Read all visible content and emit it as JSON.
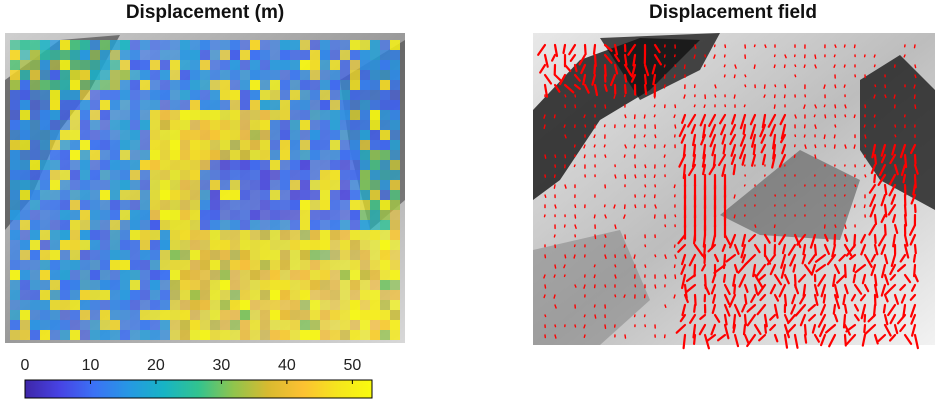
{
  "panels": {
    "left": {
      "title": "Displacement (m)"
    },
    "right": {
      "title": "Displacement field"
    }
  },
  "colorbar": {
    "ticks": [
      "0",
      "10",
      "20",
      "30",
      "40",
      "50"
    ],
    "range": [
      0,
      53
    ],
    "colormap": [
      "#3e26a8",
      "#4743e4",
      "#3b72f5",
      "#2698e3",
      "#17b4c5",
      "#32c38f",
      "#8fc44d",
      "#d8ba30",
      "#fcc132",
      "#f5e51e",
      "#f9fb0e"
    ]
  },
  "chart_data": [
    {
      "type": "heatmap",
      "title": "Displacement (m)",
      "colorbar_label": "",
      "value_range": [
        0,
        53
      ],
      "colorbar_ticks": [
        0,
        10,
        20,
        30,
        40,
        50
      ],
      "description_values": "gridded displacement magnitudes 0–53 m over shaded-relief terrain; highest values (40–53 m) along central slope and lower basin"
    },
    {
      "type": "scatter",
      "title": "Displacement field",
      "marker": "vector arrows",
      "vector_color": "#ff0000"
    }
  ]
}
